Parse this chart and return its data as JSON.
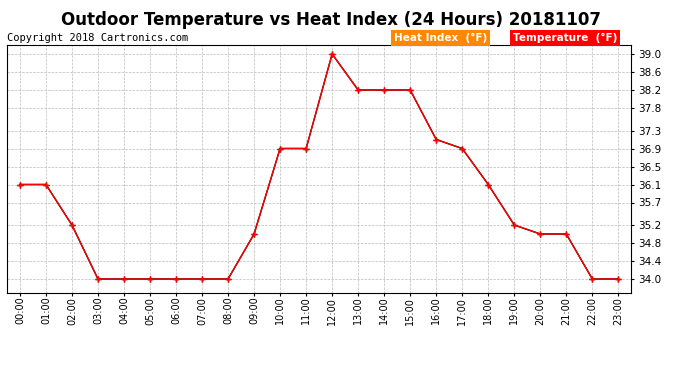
{
  "title": "Outdoor Temperature vs Heat Index (24 Hours) 20181107",
  "copyright": "Copyright 2018 Cartronics.com",
  "ylim": [
    33.7,
    39.2
  ],
  "yticks": [
    34.0,
    34.4,
    34.8,
    35.2,
    35.7,
    36.1,
    36.5,
    36.9,
    37.3,
    37.8,
    38.2,
    38.6,
    39.0
  ],
  "hours": [
    "00:00",
    "01:00",
    "02:00",
    "03:00",
    "04:00",
    "05:00",
    "06:00",
    "07:00",
    "08:00",
    "09:00",
    "10:00",
    "11:00",
    "12:00",
    "13:00",
    "14:00",
    "15:00",
    "16:00",
    "17:00",
    "18:00",
    "19:00",
    "20:00",
    "21:00",
    "22:00",
    "23:00"
  ],
  "temperature": [
    36.1,
    36.1,
    35.2,
    34.0,
    34.0,
    34.0,
    34.0,
    34.0,
    34.0,
    35.0,
    36.9,
    36.9,
    39.0,
    38.2,
    38.2,
    38.2,
    37.1,
    36.9,
    36.1,
    35.2,
    35.0,
    35.0,
    34.0,
    34.0
  ],
  "heat_index": [
    36.1,
    36.1,
    35.2,
    34.0,
    34.0,
    34.0,
    34.0,
    34.0,
    34.0,
    35.0,
    36.9,
    36.9,
    39.0,
    38.2,
    38.2,
    38.2,
    37.1,
    36.9,
    36.1,
    35.2,
    35.0,
    35.0,
    34.0,
    34.0
  ],
  "temp_color": "#ff0000",
  "heat_color": "#000000",
  "legend_heat_bg": "#ff8800",
  "legend_temp_bg": "#ff0000",
  "legend_heat_text": "Heat Index  (°F)",
  "legend_temp_text": "Temperature  (°F)",
  "background_color": "#ffffff",
  "grid_color": "#bbbbbb",
  "title_fontsize": 12,
  "copyright_fontsize": 7.5
}
